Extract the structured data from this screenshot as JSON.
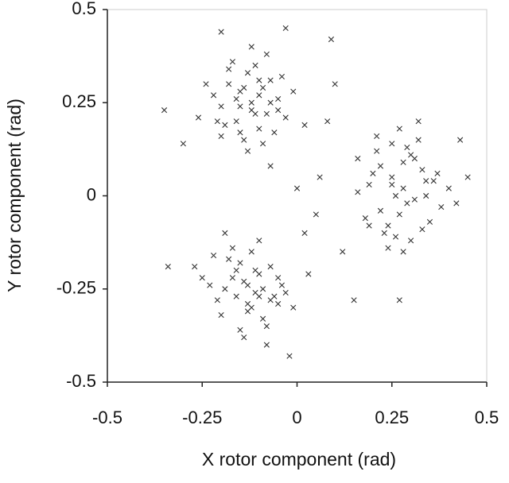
{
  "chart_data": {
    "type": "scatter",
    "xlabel": "X rotor component (rad)",
    "ylabel": "Y rotor component (rad)",
    "xlim": [
      -0.5,
      0.5
    ],
    "ylim": [
      -0.5,
      0.5
    ],
    "xticks": [
      -0.5,
      -0.25,
      0,
      0.25,
      0.5
    ],
    "yticks": [
      -0.5,
      -0.25,
      0,
      0.25,
      0.5
    ],
    "marker": "x",
    "series": [
      {
        "color": "#333333",
        "x": [
          -0.12,
          -0.15,
          -0.08,
          -0.18,
          -0.1,
          -0.05,
          -0.2,
          -0.13,
          -0.16,
          -0.09,
          -0.22,
          -0.03,
          -0.11,
          -0.14,
          -0.07,
          -0.19,
          -0.12,
          -0.17,
          -0.06,
          -0.1,
          -0.24,
          -0.01,
          -0.13,
          -0.15,
          -0.08,
          -0.2,
          -0.11,
          -0.04,
          -0.16,
          -0.09,
          -0.26,
          -0.14,
          0.02,
          -0.18,
          -0.07,
          -0.12,
          -0.21,
          -0.1,
          -0.15,
          -0.05,
          0.28,
          0.25,
          0.31,
          0.22,
          0.34,
          0.27,
          0.19,
          0.3,
          0.36,
          0.24,
          0.29,
          0.21,
          0.33,
          0.26,
          0.38,
          0.18,
          0.32,
          0.23,
          0.28,
          0.35,
          0.2,
          0.3,
          0.25,
          0.4,
          0.27,
          0.16,
          0.33,
          0.22,
          0.29,
          0.37,
          0.24,
          0.31,
          0.26,
          0.42,
          0.21,
          0.34,
          0.28,
          0.19,
          0.32,
          0.25,
          -0.13,
          -0.1,
          -0.16,
          -0.07,
          -0.19,
          -0.12,
          -0.05,
          -0.15,
          -0.21,
          -0.09,
          -0.14,
          -0.03,
          -0.17,
          -0.11,
          -0.23,
          -0.08,
          -0.13,
          -0.18,
          -0.06,
          -0.1,
          -0.25,
          -0.01,
          -0.14,
          -0.16,
          -0.09,
          -0.2,
          -0.12,
          -0.04,
          -0.15,
          -0.07,
          -0.27,
          -0.11,
          0.03,
          -0.19,
          -0.08,
          -0.13,
          -0.22,
          -0.1,
          -0.17,
          -0.05,
          -0.35,
          -0.3,
          -0.34,
          0.09,
          0.06,
          -0.03,
          0.45,
          0.43,
          0.15,
          0.12,
          0.05,
          0.0,
          -0.02,
          0.08,
          0.27,
          0.16,
          -0.07,
          -0.2,
          0.02,
          0.1
        ],
        "y": [
          0.25,
          0.28,
          0.22,
          0.3,
          0.18,
          0.26,
          0.24,
          0.33,
          0.2,
          0.29,
          0.27,
          0.21,
          0.35,
          0.15,
          0.31,
          0.19,
          0.23,
          0.36,
          0.17,
          0.27,
          0.3,
          0.28,
          0.12,
          0.24,
          0.38,
          0.16,
          0.22,
          0.32,
          0.26,
          0.14,
          0.21,
          0.29,
          0.19,
          0.34,
          0.25,
          0.4,
          0.2,
          0.31,
          0.17,
          0.23,
          0.02,
          0.05,
          -0.01,
          0.08,
          0.0,
          -0.05,
          0.03,
          0.11,
          0.04,
          -0.08,
          -0.02,
          0.12,
          0.07,
          0.0,
          -0.03,
          -0.06,
          0.15,
          -0.1,
          0.09,
          -0.07,
          0.06,
          -0.12,
          0.14,
          0.02,
          0.18,
          0.01,
          -0.09,
          -0.04,
          0.13,
          0.06,
          -0.14,
          0.1,
          -0.11,
          -0.02,
          0.16,
          0.04,
          -0.15,
          -0.08,
          0.2,
          0.03,
          -0.24,
          -0.21,
          -0.27,
          -0.19,
          -0.25,
          -0.3,
          -0.22,
          -0.18,
          -0.28,
          -0.33,
          -0.23,
          -0.26,
          -0.14,
          -0.2,
          -0.24,
          -0.35,
          -0.29,
          -0.17,
          -0.27,
          -0.12,
          -0.22,
          -0.3,
          -0.38,
          -0.2,
          -0.25,
          -0.32,
          -0.15,
          -0.24,
          -0.36,
          -0.28,
          -0.19,
          -0.26,
          -0.21,
          -0.1,
          -0.4,
          -0.31,
          -0.16,
          -0.27,
          -0.22,
          -0.29,
          0.23,
          0.14,
          -0.19,
          0.42,
          0.05,
          0.45,
          0.05,
          0.15,
          -0.28,
          -0.15,
          -0.05,
          0.02,
          -0.43,
          0.2,
          -0.28,
          0.1,
          0.08,
          0.44,
          -0.1,
          0.3
        ]
      }
    ]
  }
}
